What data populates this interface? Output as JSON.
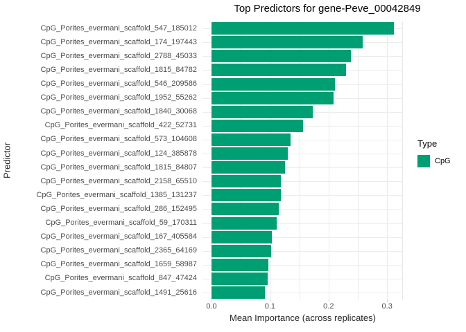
{
  "chart_data": {
    "type": "bar",
    "orientation": "horizontal",
    "title": "Top Predictors for gene-Peve_00042849",
    "xlabel": "Mean Importance (across replicates)",
    "ylabel": "Predictor",
    "legend_position": "right",
    "grid": true,
    "xlim": [
      0,
      0.327
    ],
    "x_ticks": [
      0,
      0.1,
      0.2,
      0.3
    ],
    "x_tick_labels": [
      "0.0",
      "0.1",
      "0.2",
      "0.3"
    ],
    "x_gridlines": [
      0,
      0.05,
      0.1,
      0.15,
      0.2,
      0.25,
      0.3
    ],
    "categories": [
      "CpG_Porites_evermani_scaffold_547_185012",
      "CpG_Porites_evermani_scaffold_174_197443",
      "CpG_Porites_evermani_scaffold_2788_45033",
      "CpG_Porites_evermani_scaffold_1815_84782",
      "CpG_Porites_evermani_scaffold_546_209586",
      "CpG_Porites_evermani_scaffold_1952_55262",
      "CpG_Porites_evermani_scaffold_1840_30068",
      "CpG_Porites_evermani_scaffold_422_52731",
      "CpG_Porites_evermani_scaffold_573_104608",
      "CpG_Porites_evermani_scaffold_124_385878",
      "CpG_Porites_evermani_scaffold_1815_84807",
      "CpG_Porites_evermani_scaffold_2158_65510",
      "CpG_Porites_evermani_scaffold_1385_131237",
      "CpG_Porites_evermani_scaffold_286_152495",
      "CpG_Porites_evermani_scaffold_59_170311",
      "CpG_Porites_evermani_scaffold_167_405584",
      "CpG_Porites_evermani_scaffold_2365_64169",
      "CpG_Porites_evermani_scaffold_1659_58987",
      "CpG_Porites_evermani_scaffold_847_47424",
      "CpG_Porites_evermani_scaffold_1491_25616"
    ],
    "series": [
      {
        "name": "CpG",
        "color": "#009E73",
        "values": [
          0.312,
          0.258,
          0.238,
          0.23,
          0.211,
          0.208,
          0.173,
          0.156,
          0.135,
          0.13,
          0.126,
          0.119,
          0.118,
          0.115,
          0.111,
          0.103,
          0.102,
          0.097,
          0.096,
          0.091
        ]
      }
    ]
  },
  "legend": {
    "title": "Type",
    "items": [
      {
        "label": "CpG",
        "color": "#009E73"
      }
    ]
  },
  "colors": {
    "bar": "#009E73",
    "grid_major": "#e8e8e8",
    "grid_minor": "#ececec",
    "axis_text": "#4d4d4d",
    "tick": "#c9c9c9"
  }
}
